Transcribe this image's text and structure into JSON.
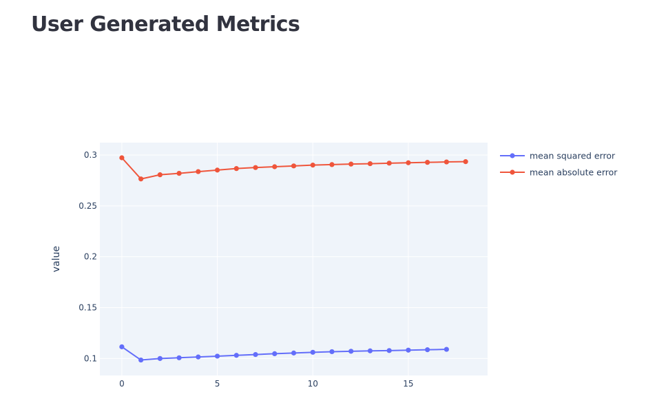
{
  "page": {
    "title": "User Generated Metrics"
  },
  "chart_data": {
    "type": "line",
    "title": "",
    "xlabel": "",
    "ylabel": "value",
    "xlim": [
      -1.15,
      19.15
    ],
    "ylim": [
      0.0833,
      0.3122
    ],
    "x_ticks": [
      0,
      5,
      10,
      15
    ],
    "y_ticks": [
      0.1,
      0.15,
      0.2,
      0.25,
      0.3
    ],
    "y_tick_labels": [
      "0.1",
      "0.15",
      "0.2",
      "0.25",
      "0.3"
    ],
    "grid": true,
    "legend_position": "right",
    "series": [
      {
        "name": "mean squared error",
        "color": "#636efa",
        "x": [
          0,
          1,
          2,
          3,
          4,
          5,
          6,
          7,
          8,
          9,
          10,
          11,
          12,
          13,
          14,
          15,
          16,
          17
        ],
        "values": [
          0.1115,
          0.0985,
          0.1,
          0.1007,
          0.1015,
          0.1023,
          0.1031,
          0.1039,
          0.1047,
          0.1054,
          0.1061,
          0.1067,
          0.1071,
          0.1075,
          0.1078,
          0.1082,
          0.1086,
          0.109
        ]
      },
      {
        "name": "mean absolute error",
        "color": "#ef553b",
        "x": [
          0,
          1,
          2,
          3,
          4,
          5,
          6,
          7,
          8,
          9,
          10,
          11,
          12,
          13,
          14,
          15,
          16,
          17,
          18
        ],
        "values": [
          0.2973,
          0.2765,
          0.2806,
          0.282,
          0.2837,
          0.2852,
          0.2867,
          0.2877,
          0.2885,
          0.2893,
          0.2901,
          0.2906,
          0.2911,
          0.2915,
          0.292,
          0.2924,
          0.2928,
          0.2932,
          0.2935
        ]
      }
    ]
  }
}
